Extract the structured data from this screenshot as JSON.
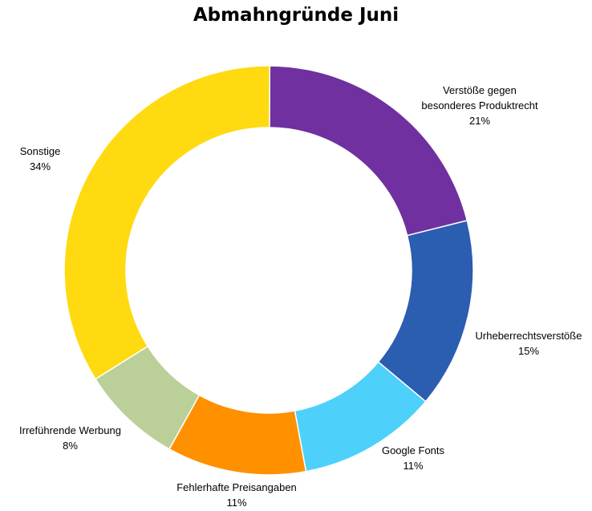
{
  "chart_data": {
    "type": "pie",
    "title": "Abmahngründe Juni",
    "donut": true,
    "slices": [
      {
        "label": "Verstöße gegen besonderes Produktrecht",
        "lines": [
          "Verstöße gegen",
          "besonderes Produktrecht"
        ],
        "percent_label": "21%",
        "value": 21,
        "color": "#7030A0"
      },
      {
        "label": "Urheberrechtsverstöße",
        "lines": [
          "Urheberrechtsverstöße"
        ],
        "percent_label": "15%",
        "value": 15,
        "color": "#2B5DB0"
      },
      {
        "label": "Google Fonts",
        "lines": [
          "Google Fonts"
        ],
        "percent_label": "11%",
        "value": 11,
        "color": "#4DD0FA"
      },
      {
        "label": "Fehlerhafte Preisangaben",
        "lines": [
          "Fehlerhafte Preisangaben"
        ],
        "percent_label": "11%",
        "value": 11,
        "color": "#FF9000"
      },
      {
        "label": "Irreführende Werbung",
        "lines": [
          "Irreführende Werbung"
        ],
        "percent_label": "8%",
        "value": 8,
        "color": "#BBCF99"
      },
      {
        "label": "Sonstige",
        "lines": [
          "Sonstige"
        ],
        "percent_label": "34%",
        "value": 34,
        "color": "#FFDA10"
      }
    ]
  }
}
